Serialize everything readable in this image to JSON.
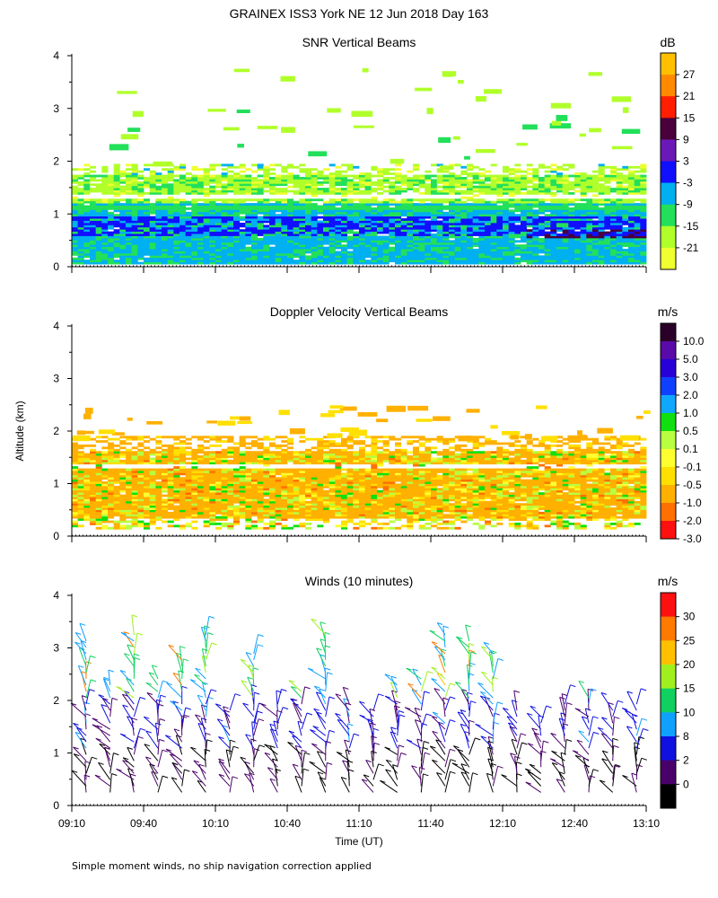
{
  "figure": {
    "title": "GRAINEX ISS3 York NE  12 Jun 2018 Day 163",
    "ylabel": "Altitude (km)",
    "xlabel": "Time (UT)",
    "footnote": "Simple moment winds, no ship navigation correction applied"
  },
  "chart_data": [
    {
      "type": "heatmap",
      "title": "SNR Vertical Beams",
      "units": "dB",
      "ylim": [
        0,
        4
      ],
      "yticks": [
        "0",
        "1",
        "2",
        "3",
        "4"
      ],
      "xlim_minutes": [
        550,
        790
      ],
      "colorbar": {
        "labels": [
          "27",
          "21",
          "15",
          "9",
          "3",
          "-3",
          "-9",
          "-15",
          "-21"
        ],
        "colors": [
          "#ffc000",
          "#ff8a00",
          "#ff1e00",
          "#4a003a",
          "#6b18b8",
          "#1010ff",
          "#00b0f0",
          "#22e05a",
          "#b0ff2a",
          "#f0ff30"
        ]
      },
      "features": [
        {
          "name": "dense echo layer",
          "altitude_km": [
            0.1,
            1.2
          ],
          "level": "-9 to -3"
        },
        {
          "name": "strong echo band",
          "altitude_km": [
            0.6,
            0.95
          ],
          "level": "-3 to 3"
        },
        {
          "name": "late strong band",
          "time": "12:20-13:10",
          "altitude_km": [
            0.55,
            0.7
          ],
          "level": "9 to 15"
        },
        {
          "name": "upper patchy layer",
          "altitude_km": [
            1.2,
            2.0
          ],
          "level": "-21 to -15"
        }
      ]
    },
    {
      "type": "heatmap",
      "title": "Doppler Velocity Vertical Beams",
      "units": "m/s",
      "ylim": [
        0,
        4
      ],
      "yticks": [
        "0",
        "1",
        "2",
        "3",
        "4"
      ],
      "xlim_minutes": [
        550,
        790
      ],
      "colorbar": {
        "labels": [
          "10.0",
          "5.0",
          "3.0",
          "2.0",
          "1.0",
          "0.5",
          "0.1",
          "-0.1",
          "-0.5",
          "-1.0",
          "-2.0",
          "-3.0"
        ],
        "colors": [
          "#2a0028",
          "#5a0aa8",
          "#2800d8",
          "#1040ff",
          "#10a8ff",
          "#10e010",
          "#b8ff40",
          "#ffff30",
          "#ffe000",
          "#ffb000",
          "#ff7000",
          "#ff1010"
        ]
      },
      "features": [
        {
          "name": "dominant field",
          "altitude_km": [
            0.3,
            1.6
          ],
          "level": "-0.5 to -0.1"
        },
        {
          "name": "scattered upward patches",
          "altitude_km": [
            0.4,
            1.2
          ],
          "level": "0.1 to 0.5"
        }
      ]
    },
    {
      "type": "scatter",
      "title": "Winds (10 minutes)",
      "units": "m/s",
      "ylim": [
        0,
        4
      ],
      "yticks": [
        "0",
        "1",
        "2",
        "3",
        "4"
      ],
      "xlim_minutes": [
        550,
        790
      ],
      "xticks": [
        "09:10",
        "09:40",
        "10:10",
        "10:40",
        "11:10",
        "11:40",
        "12:10",
        "12:40",
        "13:10"
      ],
      "colorbar": {
        "labels": [
          "30",
          "25",
          "20",
          "15",
          "10",
          "8",
          "2",
          "0"
        ],
        "colors": [
          "#ff1010",
          "#ff7a00",
          "#ffc000",
          "#a0f020",
          "#10d060",
          "#10a0ff",
          "#1010e0",
          "#4a006a",
          "#000000"
        ]
      },
      "profiles_minutes": [
        556,
        566,
        576,
        586,
        596,
        606,
        616,
        626,
        636,
        646,
        656,
        666,
        676,
        686,
        696,
        706,
        716,
        726,
        736,
        746,
        756,
        766,
        776,
        786
      ],
      "notes": "Wind barbs every 10 minutes from 0.2 to ~3.5 km; speeds mostly 0-10 m/s below 2 km, 8-25 m/s aloft."
    }
  ]
}
